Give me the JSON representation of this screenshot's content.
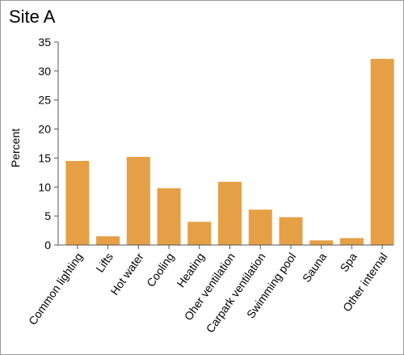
{
  "chart_data": {
    "type": "bar",
    "title": "Site A",
    "xlabel": "",
    "ylabel": "Percent",
    "ylim": [
      0,
      35
    ],
    "yticks": [
      0,
      5,
      10,
      15,
      20,
      25,
      30,
      35
    ],
    "grid": false,
    "legend": "none",
    "bar_color": "#E5A045",
    "categories": [
      "Common lighting",
      "Lifts",
      "Hot water",
      "Cooling",
      "Heating",
      "Oher ventilation",
      "Carpark ventilation",
      "Swimming pool",
      "Sauna",
      "Spa",
      "Other internal"
    ],
    "values": [
      14.5,
      1.5,
      15.2,
      9.8,
      4.0,
      10.9,
      6.1,
      4.8,
      0.8,
      1.2,
      32.1
    ]
  }
}
